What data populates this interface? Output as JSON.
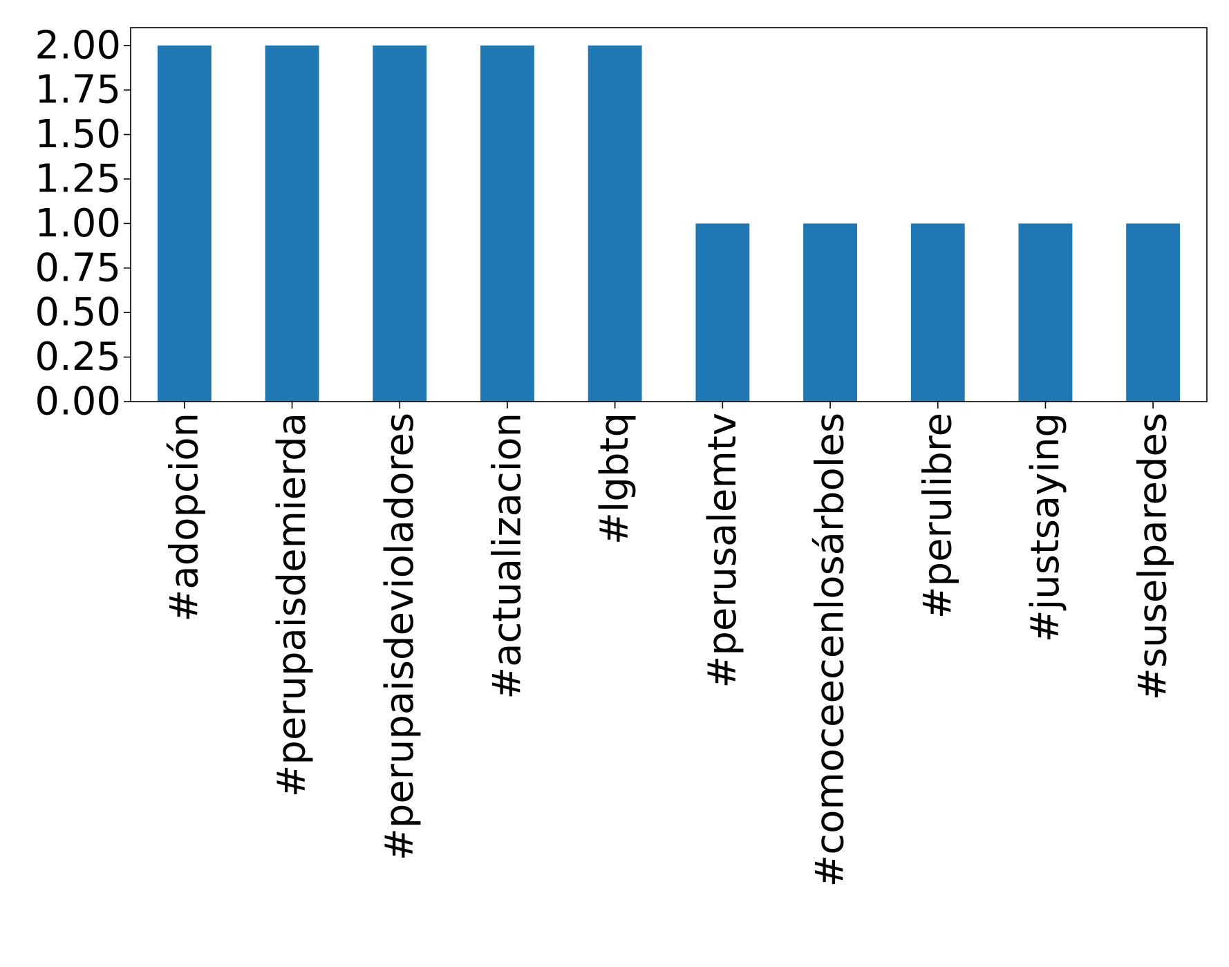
{
  "chart_data": {
    "type": "bar",
    "title": "",
    "xlabel": "",
    "ylabel": "",
    "categories": [
      "#adopción",
      "#perupaisdemierda",
      "#perupaisdevioladores",
      "#actualizacion",
      "#lgbtq",
      "#perusalemtv",
      "#comoceecenlosárboles",
      "#perulibre",
      "#justsaying",
      "#suselparedes"
    ],
    "values": [
      2,
      2,
      2,
      2,
      2,
      1,
      1,
      1,
      1,
      1
    ],
    "ylim": [
      0,
      2.1
    ],
    "yticks": [
      "0.00",
      "0.25",
      "0.50",
      "0.75",
      "1.00",
      "1.25",
      "1.50",
      "1.75",
      "2.00"
    ],
    "bar_color": "#1f77b4",
    "grid": false,
    "legend": "none"
  }
}
